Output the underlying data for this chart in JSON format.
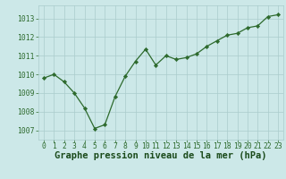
{
  "x": [
    0,
    1,
    2,
    3,
    4,
    5,
    6,
    7,
    8,
    9,
    10,
    11,
    12,
    13,
    14,
    15,
    16,
    17,
    18,
    19,
    20,
    21,
    22,
    23
  ],
  "y": [
    1009.8,
    1010.0,
    1009.6,
    1009.0,
    1008.2,
    1007.1,
    1007.3,
    1008.8,
    1009.9,
    1010.7,
    1011.35,
    1010.5,
    1011.0,
    1010.8,
    1010.9,
    1011.1,
    1011.5,
    1011.8,
    1012.1,
    1012.2,
    1012.5,
    1012.6,
    1013.1,
    1013.2
  ],
  "ylim": [
    1006.5,
    1013.7
  ],
  "yticks": [
    1007,
    1008,
    1009,
    1010,
    1011,
    1012,
    1013
  ],
  "xlim": [
    -0.5,
    23.5
  ],
  "xticks": [
    0,
    1,
    2,
    3,
    4,
    5,
    6,
    7,
    8,
    9,
    10,
    11,
    12,
    13,
    14,
    15,
    16,
    17,
    18,
    19,
    20,
    21,
    22,
    23
  ],
  "line_color": "#2d6a2d",
  "marker_color": "#2d6a2d",
  "bg_color": "#cce8e8",
  "grid_color": "#aacccc",
  "xlabel": "Graphe pression niveau de la mer (hPa)",
  "xlabel_color": "#1a4a1a",
  "tick_color": "#2d6a2d",
  "tick_fontsize": 5.8,
  "xlabel_fontsize": 7.5
}
